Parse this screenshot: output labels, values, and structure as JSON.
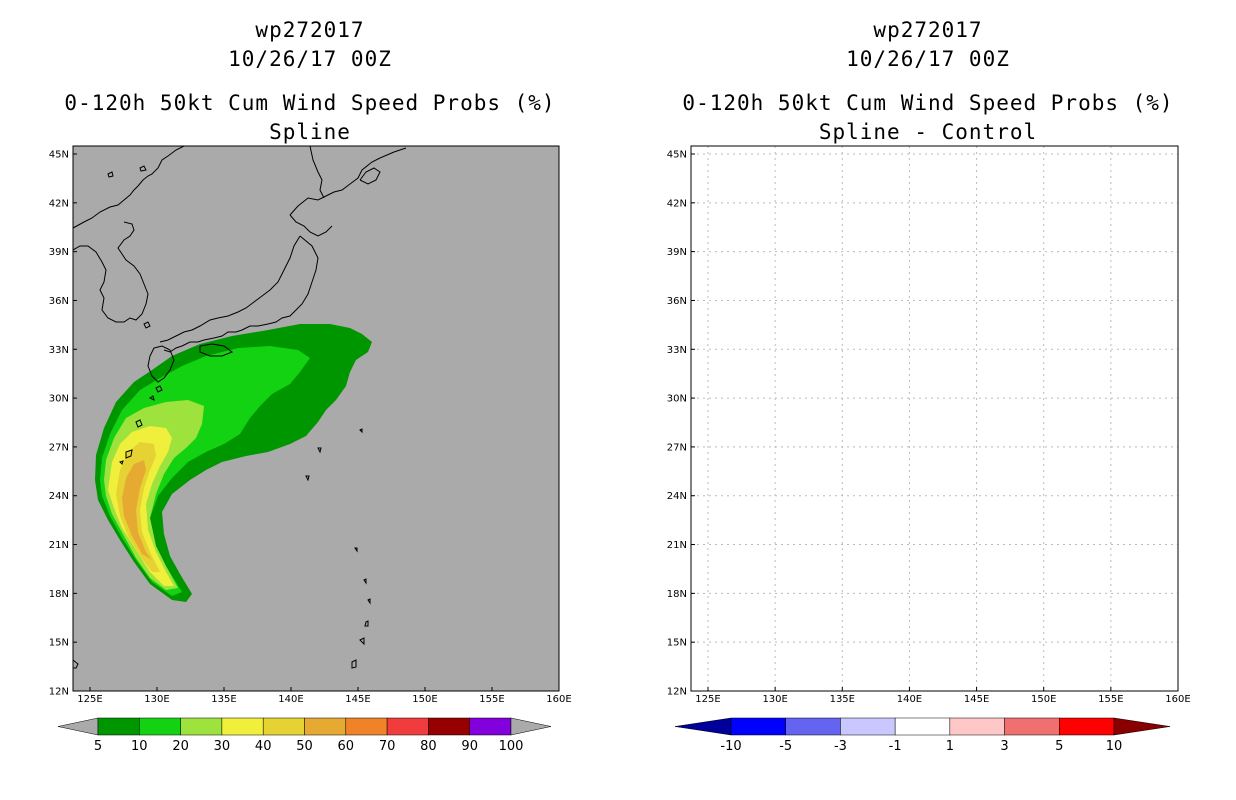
{
  "left_panel": {
    "title_line1": "wp272017",
    "title_line2": "10/26/17 00Z",
    "title_line3": "0-120h 50kt Cum Wind Speed Probs (%)",
    "title_line4": "Spline"
  },
  "right_panel": {
    "title_line1": "wp272017",
    "title_line2": "10/26/17 00Z",
    "title_line3": "0-120h 50kt Cum Wind Speed Probs (%)",
    "title_line4": "Spline - Control"
  },
  "axes": {
    "lat_labels": [
      "45N",
      "42N",
      "39N",
      "36N",
      "33N",
      "30N",
      "27N",
      "24N",
      "21N",
      "18N",
      "15N",
      "12N"
    ],
    "lon_labels": [
      "125E",
      "130E",
      "135E",
      "140E",
      "145E",
      "150E",
      "155E",
      "160E"
    ]
  },
  "left_colorbar": {
    "labels": [
      "5",
      "10",
      "20",
      "30",
      "40",
      "50",
      "60",
      "70",
      "80",
      "90",
      "100"
    ],
    "colors": [
      "#009600",
      "#12d212",
      "#9ee23e",
      "#f0f03c",
      "#e6d232",
      "#e6aa32",
      "#f08228",
      "#f03c3c",
      "#960000",
      "#8200dc"
    ],
    "under_color": "#aaaaaa",
    "over_color": "#aaaaaa"
  },
  "right_colorbar": {
    "labels": [
      "-10",
      "-5",
      "-3",
      "-1",
      "1",
      "3",
      "5",
      "10"
    ],
    "colors": [
      "#0000ff",
      "#6464f0",
      "#c8c8ff",
      "#ffffff",
      "#ffc8c8",
      "#f07070",
      "#ff0000"
    ],
    "under_color": "#00009a",
    "over_color": "#8a0000"
  },
  "colors": {
    "map_background_left": "#aaaaaa",
    "map_background_right": "#ffffff",
    "grid": "#bbbbbb",
    "coast": "#000000"
  }
}
